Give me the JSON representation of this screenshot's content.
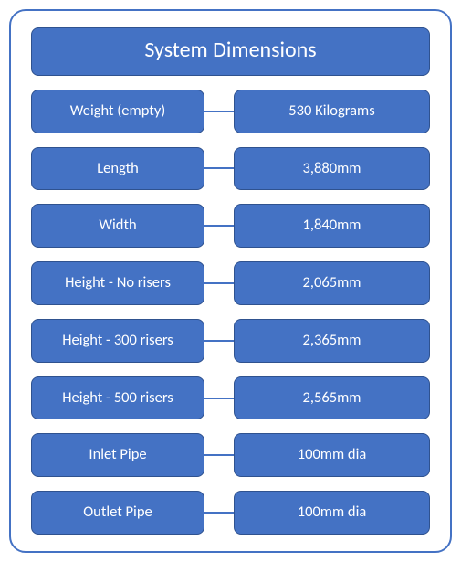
{
  "title": "System Dimensions",
  "style": {
    "box_fill": "#4472c4",
    "box_border": "#2f528f",
    "frame_border": "#4472c4",
    "text_color": "#ffffff",
    "title_fontsize": 24,
    "cell_fontsize": 16.5,
    "border_radius": 8,
    "frame_radius": 18,
    "connector_color": "#4472c4"
  },
  "rows": [
    {
      "label": "Weight (empty)",
      "value": "530 Kilograms"
    },
    {
      "label": "Length",
      "value": "3,880mm"
    },
    {
      "label": "Width",
      "value": "1,840mm"
    },
    {
      "label": "Height - No risers",
      "value": "2,065mm"
    },
    {
      "label": "Height - 300 risers",
      "value": "2,365mm"
    },
    {
      "label": "Height - 500 risers",
      "value": "2,565mm"
    },
    {
      "label": "Inlet Pipe",
      "value": "100mm dia"
    },
    {
      "label": "Outlet Pipe",
      "value": "100mm dia"
    }
  ]
}
